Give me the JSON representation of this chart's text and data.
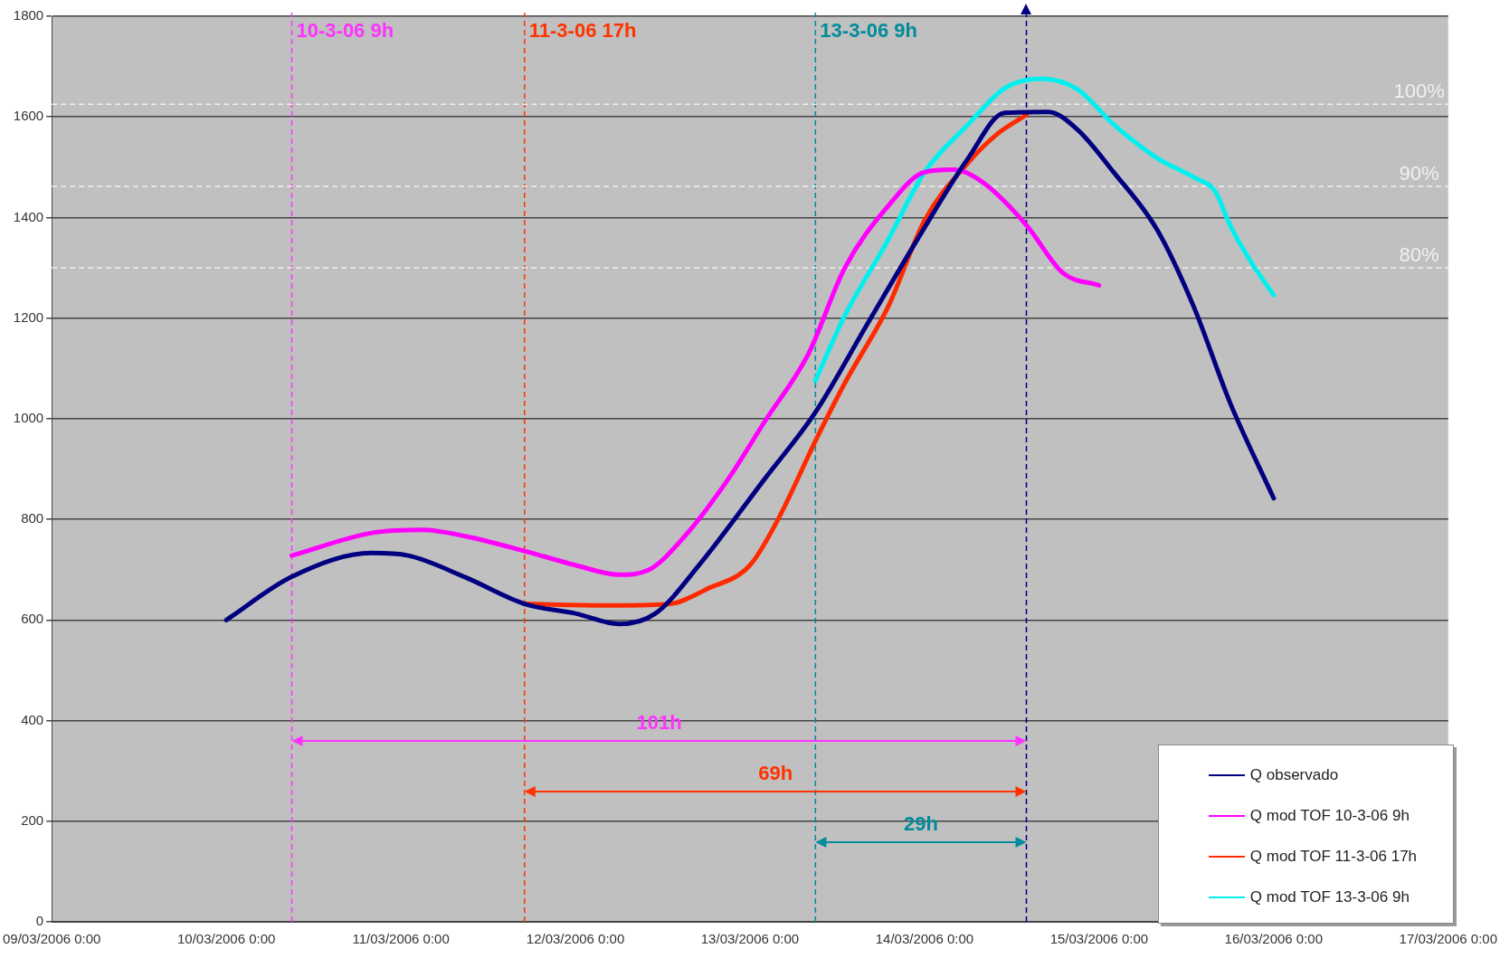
{
  "chart_data": {
    "type": "line",
    "x": [
      "2006-03-10T00:00",
      "2006-03-10T09:00",
      "2006-03-10T20:00",
      "2006-03-11T01:00",
      "2006-03-11T09:00",
      "2006-03-11T17:00",
      "2006-03-12T00:00",
      "2006-03-12T06:00",
      "2006-03-12T11:00",
      "2006-03-12T17:00",
      "2006-03-13T02:00",
      "2006-03-13T09:00",
      "2006-03-13T16:00",
      "2006-03-13T23:00",
      "2006-03-14T06:00",
      "2006-03-14T11:00",
      "2006-03-14T17:00",
      "2006-03-14T21:00",
      "2006-03-15T02:00",
      "2006-03-15T08:00",
      "2006-03-15T13:00",
      "2006-03-15T18:00",
      "2006-03-16T00:00"
    ],
    "series": [
      {
        "name": "Q observado",
        "color": "#000080",
        "values": [
          600,
          686,
          733,
          728,
          684,
          632,
          613,
          592,
          613,
          709,
          880,
          1013,
          1185,
          1356,
          1518,
          1608,
          1610,
          1575,
          1490,
          1375,
          1223,
          1032,
          842
        ]
      },
      {
        "name": "Q mod TOF 10-3-06 9h",
        "color": "#ff00ff",
        "x": [
          "2006-03-10T09:00",
          "2006-03-10T20:00",
          "2006-03-11T03:00",
          "2006-03-11T09:00",
          "2006-03-11T17:00",
          "2006-03-12T00:00",
          "2006-03-12T06:00",
          "2006-03-12T10:00",
          "2006-03-12T15:00",
          "2006-03-12T21:00",
          "2006-03-13T02:00",
          "2006-03-13T08:00",
          "2006-03-13T13:00",
          "2006-03-13T19:00",
          "2006-03-14T00:00",
          "2006-03-14T04:00",
          "2006-03-14T08:00",
          "2006-03-14T14:00",
          "2006-03-14T19:00",
          "2006-03-15T00:00"
        ],
        "values": [
          728,
          773,
          779,
          766,
          737,
          709,
          690,
          699,
          766,
          880,
          994,
          1128,
          1299,
          1423,
          1490,
          1495,
          1470,
          1385,
          1290,
          1265
        ]
      },
      {
        "name": "Q mod TOF 11-3-06 17h",
        "color": "#ff2a00",
        "x": [
          "2006-03-11T17:00",
          "2006-03-11T23:00",
          "2006-03-12T06:00",
          "2006-03-12T13:00",
          "2006-03-12T18:00",
          "2006-03-13T00:00",
          "2006-03-13T04:00",
          "2006-03-13T09:00",
          "2006-03-13T13:00",
          "2006-03-13T19:00",
          "2006-03-14T00:00",
          "2006-03-14T06:00",
          "2006-03-14T10:00",
          "2006-03-14T14:00"
        ],
        "values": [
          632,
          630,
          629,
          632,
          661,
          709,
          804,
          956,
          1070,
          1223,
          1394,
          1509,
          1566,
          1604
        ]
      },
      {
        "name": "Q mod TOF 13-3-06 9h",
        "color": "#00f0f0",
        "x": [
          "2006-03-13T09:00",
          "2006-03-13T13:00",
          "2006-03-13T19:00",
          "2006-03-14T00:00",
          "2006-03-14T06:00",
          "2006-03-14T11:00",
          "2006-03-14T16:00",
          "2006-03-14T21:00",
          "2006-03-15T02:00",
          "2006-03-15T08:00",
          "2006-03-15T13:00",
          "2006-03-15T16:00",
          "2006-03-15T18:00",
          "2006-03-15T21:00",
          "2006-03-16T00:00"
        ],
        "values": [
          1076,
          1204,
          1356,
          1490,
          1585,
          1657,
          1676,
          1655,
          1585,
          1518,
          1480,
          1451,
          1385,
          1309,
          1246
        ]
      }
    ],
    "xlim": [
      "2006-03-09T00:00",
      "2006-03-17T00:00"
    ],
    "xticks": [
      {
        "value": "2006-03-09T00:00",
        "label": "09/03/2006 0:00"
      },
      {
        "value": "2006-03-10T00:00",
        "label": "10/03/2006 0:00"
      },
      {
        "value": "2006-03-11T00:00",
        "label": "11/03/2006 0:00"
      },
      {
        "value": "2006-03-12T00:00",
        "label": "12/03/2006 0:00"
      },
      {
        "value": "2006-03-13T00:00",
        "label": "13/03/2006 0:00"
      },
      {
        "value": "2006-03-14T00:00",
        "label": "14/03/2006 0:00"
      },
      {
        "value": "2006-03-15T00:00",
        "label": "15/03/2006 0:00"
      },
      {
        "value": "2006-03-16T00:00",
        "label": "16/03/2006 0:00"
      },
      {
        "value": "2006-03-17T00:00",
        "label": "17/03/2006 0:00"
      }
    ],
    "ylim": [
      0,
      1800
    ],
    "yticks": [
      0,
      200,
      400,
      600,
      800,
      1000,
      1200,
      1400,
      1600,
      1800
    ],
    "grid": "y",
    "legend": "bottom right",
    "marker": "none",
    "line_style": "solid",
    "ref_lines": [
      {
        "axis": "x",
        "value": "2006-03-10T09:00",
        "label": "10-3-06 9h",
        "color": "#ff33ff",
        "line_style": "dashed"
      },
      {
        "axis": "x",
        "value": "2006-03-11T17:00",
        "label": "11-3-06 17h",
        "color": "#ff3300",
        "line_style": "dashed"
      },
      {
        "axis": "x",
        "value": "2006-03-13T09:00",
        "label": "13-3-06 9h",
        "color": "#008c9a",
        "line_style": "dashed"
      },
      {
        "axis": "x",
        "value": "2006-03-14T14:00",
        "color": "#000080",
        "line_style": "dashed"
      },
      {
        "axis": "y",
        "value": 1625,
        "color": "#f0f0f0",
        "line_style": "dashed"
      },
      {
        "axis": "y",
        "value": 1462,
        "color": "#f0f0f0",
        "line_style": "dashed"
      },
      {
        "axis": "y",
        "value": 1300,
        "color": "#f0f0f0",
        "line_style": "dashed"
      }
    ],
    "annotations": [
      "101h",
      "69h",
      "29h",
      {
        "text": "100%",
        "x": "2006-03-16T20:00",
        "y": 1625
      },
      {
        "text": "90%",
        "x": "2006-03-16T20:00",
        "y": 1462
      },
      {
        "text": "80%",
        "x": "2006-03-16T20:00",
        "y": 1300
      }
    ]
  }
}
